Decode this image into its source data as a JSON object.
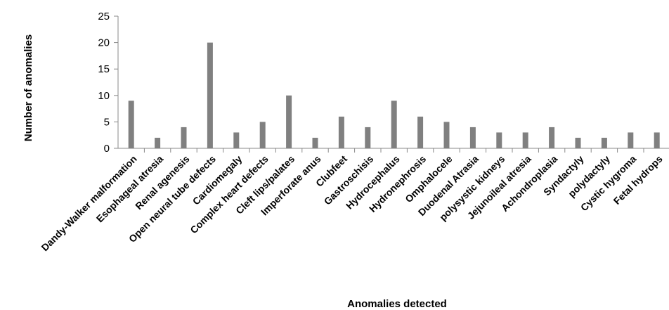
{
  "chart_data": {
    "type": "bar",
    "xlabel": "Anomalies detected",
    "ylabel": "Number of anomalies",
    "ylim": [
      0,
      25
    ],
    "yticks": [
      0,
      5,
      10,
      15,
      20,
      25
    ],
    "grid": false,
    "legend": "none",
    "bar_color": "#808080",
    "categories": [
      "Dandy-Walker malformation",
      "Esophageal atresia",
      "Renal agenesis",
      "Open neural tube defects",
      "Cardiomegaly",
      "Complex heart defects",
      "Cleft lips/palates",
      "Imperforate anus",
      "Clubfeet",
      "Gastroschisis",
      "Hydrocephalus",
      "Hydronephrosis",
      "Omphalocele",
      "Duodenal Atrasia",
      "polysystic kidneys",
      "Jejunoileal atresia",
      "Achondroplasia",
      "Syndactyly",
      "polydactyly",
      "Cystic hygroma",
      "Fetal hydrops"
    ],
    "values": [
      9,
      2,
      4,
      20,
      3,
      5,
      10,
      2,
      6,
      4,
      9,
      6,
      5,
      4,
      3,
      3,
      4,
      2,
      2,
      3,
      3
    ]
  }
}
